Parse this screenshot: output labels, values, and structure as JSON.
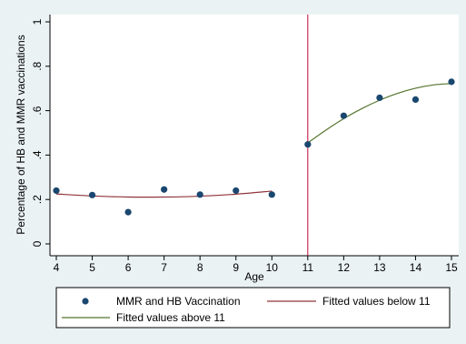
{
  "chart_data": {
    "type": "scatter",
    "xlabel": "Age",
    "ylabel": "Percentage of HB and MMR vaccinations",
    "xlim": [
      4,
      15
    ],
    "ylim": [
      0,
      1
    ],
    "x_ticks": [
      "4",
      "5",
      "6",
      "7",
      "8",
      "9",
      "10",
      "11",
      "12",
      "13",
      "14",
      "15"
    ],
    "y_ticks": [
      "0",
      ".2",
      ".4",
      ".6",
      ".8",
      "1"
    ],
    "grid": false,
    "cutoff_x": 11,
    "series": [
      {
        "name": "MMR and HB Vaccination",
        "kind": "scatter",
        "color": "#1a476f",
        "points": [
          {
            "x": 4,
            "y": 0.24
          },
          {
            "x": 5,
            "y": 0.22
          },
          {
            "x": 6,
            "y": 0.143
          },
          {
            "x": 7,
            "y": 0.245
          },
          {
            "x": 8,
            "y": 0.222
          },
          {
            "x": 9,
            "y": 0.24
          },
          {
            "x": 10,
            "y": 0.222
          },
          {
            "x": 11,
            "y": 0.448
          },
          {
            "x": 12,
            "y": 0.577
          },
          {
            "x": 13,
            "y": 0.658
          },
          {
            "x": 14,
            "y": 0.65
          },
          {
            "x": 15,
            "y": 0.73
          }
        ]
      },
      {
        "name": "Fitted values below 11",
        "kind": "line",
        "color": "#90353b",
        "points": [
          {
            "x": 4,
            "y": 0.225
          },
          {
            "x": 5,
            "y": 0.216
          },
          {
            "x": 6,
            "y": 0.211
          },
          {
            "x": 7,
            "y": 0.211
          },
          {
            "x": 8,
            "y": 0.215
          },
          {
            "x": 9,
            "y": 0.224
          },
          {
            "x": 10,
            "y": 0.238
          }
        ]
      },
      {
        "name": "Fitted values above 11",
        "kind": "line",
        "color": "#55752f",
        "points": [
          {
            "x": 11,
            "y": 0.455
          },
          {
            "x": 11.5,
            "y": 0.512
          },
          {
            "x": 12,
            "y": 0.564
          },
          {
            "x": 12.5,
            "y": 0.609
          },
          {
            "x": 13,
            "y": 0.647
          },
          {
            "x": 13.5,
            "y": 0.678
          },
          {
            "x": 14,
            "y": 0.701
          },
          {
            "x": 14.5,
            "y": 0.716
          },
          {
            "x": 15,
            "y": 0.722
          }
        ]
      }
    ],
    "cutoff_color": "#c10534",
    "legend": {
      "position": "bottom",
      "entries": [
        {
          "label": "MMR and HB Vaccination",
          "kind": "marker",
          "color": "#1a476f"
        },
        {
          "label": "Fitted values below 11",
          "kind": "line",
          "color": "#90353b"
        },
        {
          "label": "Fitted values above 11",
          "kind": "line",
          "color": "#55752f"
        }
      ]
    },
    "background_color": "#eaf2f3",
    "plot_background_color": "#ffffff"
  }
}
